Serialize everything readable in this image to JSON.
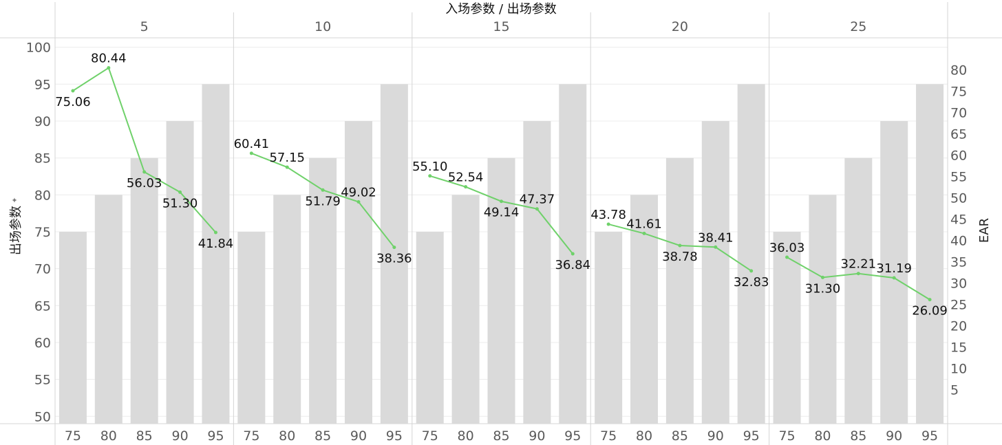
{
  "chart_data": {
    "type": "bar",
    "title": "入场参数 / 出场参数",
    "ylabel": "出场参数",
    "y2label": "EAR",
    "ylim": [
      49,
      101
    ],
    "y2lim": [
      -3,
      87
    ],
    "yticks": [
      50,
      55,
      60,
      65,
      70,
      75,
      80,
      85,
      90,
      95,
      100
    ],
    "y2ticks": [
      5,
      10,
      15,
      20,
      25,
      30,
      35,
      40,
      45,
      50,
      55,
      60,
      65,
      70,
      75,
      80
    ],
    "panels": [
      "5",
      "10",
      "15",
      "20",
      "25"
    ],
    "categories": [
      "75",
      "80",
      "85",
      "90",
      "95"
    ],
    "bar_values": [
      75,
      80,
      85,
      90,
      95
    ],
    "series": [
      {
        "name": "EAR",
        "values": [
          [
            75.06,
            80.44,
            56.03,
            51.3,
            41.84
          ],
          [
            60.41,
            57.15,
            51.79,
            49.02,
            38.36
          ],
          [
            55.1,
            52.54,
            49.14,
            47.37,
            36.84
          ],
          [
            43.78,
            41.61,
            38.78,
            38.41,
            32.83
          ],
          [
            36.03,
            31.3,
            32.21,
            31.19,
            26.09
          ]
        ],
        "labels": [
          [
            "75.06",
            "80.44",
            "56.03",
            "51.30",
            "41.84"
          ],
          [
            "60.41",
            "57.15",
            "51.79",
            "49.02",
            "38.36"
          ],
          [
            "55.10",
            "52.54",
            "49.14",
            "47.37",
            "36.84"
          ],
          [
            "43.78",
            "41.61",
            "38.78",
            "38.41",
            "32.83"
          ],
          [
            "36.03",
            "31.30",
            "32.21",
            "31.19",
            "26.09"
          ]
        ]
      }
    ],
    "grid": true,
    "colors": {
      "bar": "#dadada",
      "line": "#6fd16a",
      "grid": "#ececec",
      "divider": "#d4d4d4"
    }
  }
}
